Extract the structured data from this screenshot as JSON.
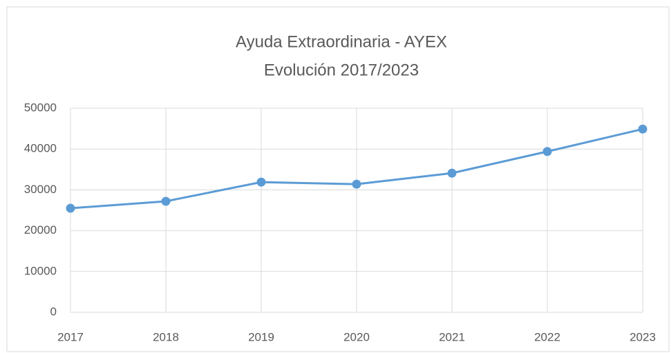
{
  "chart_data": {
    "type": "line",
    "title": "Ayuda Extraordinaria - AYEX",
    "subtitle": "Evolución 2017/2023",
    "categories": [
      "2017",
      "2018",
      "2019",
      "2020",
      "2021",
      "2022",
      "2023"
    ],
    "values": [
      25500,
      27200,
      31900,
      31400,
      34100,
      39400,
      44900
    ],
    "color": "#5b9bd5",
    "ylim": [
      0,
      50000
    ],
    "yticks": [
      0,
      10000,
      20000,
      30000,
      40000,
      50000
    ],
    "grid": true
  }
}
